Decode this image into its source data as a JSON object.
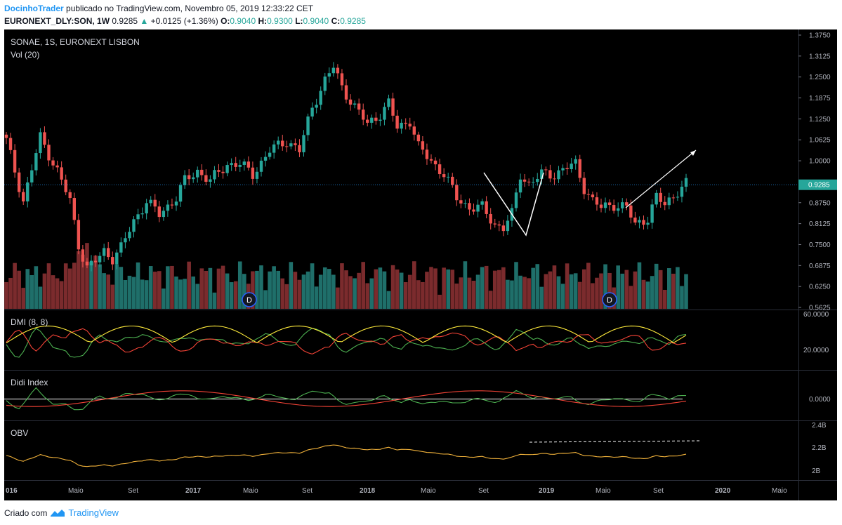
{
  "header": {
    "author": "DocinhoTrader",
    "published": "publicado no TradingView.com, Novembro 05, 2019 12:33:22 CET",
    "symbol": "EURONEXT_DLY:SON, 1W",
    "price": "0.9285",
    "change_arrow": "▲",
    "change": "+0.0125 (+1.36%)",
    "o_label": "O:",
    "o": "0.9040",
    "h_label": "H:",
    "h": "0.9300",
    "l_label": "L:",
    "l": "0.9040",
    "c_label": "C:",
    "c": "0.9285"
  },
  "footer": {
    "created": "Criado com",
    "brand": "TradingView"
  },
  "colors": {
    "background": "#000000",
    "up": "#26a69a",
    "down": "#ef5350",
    "vol_up": "#1f6f6a",
    "vol_down": "#7b2b2d",
    "plus_di": "#4caf50",
    "minus_di": "#f44336",
    "adx": "#ffeb3b",
    "didi_short": "#4caf50",
    "didi_long": "#f44336",
    "obv": "#f0b13a",
    "price_line": "#2196f3"
  },
  "chart_data": {
    "type": "candlestick",
    "pane_labels": {
      "main_title": "SONAE, 1S, EURONEXT LISBON",
      "volume": "Vol (20)",
      "dmi": "DMI (8, 8)",
      "didi": "Didi Index",
      "obv": "OBV"
    },
    "price_axis_ticks": [
      "1.3750",
      "1.3125",
      "1.2500",
      "1.1875",
      "1.1250",
      "1.0625",
      "1.0000",
      "0.8750",
      "0.8125",
      "0.7500",
      "0.6875",
      "0.6250",
      "0.5625"
    ],
    "last_price_label": "0.9285",
    "dmi_axis_ticks": [
      "60.0000",
      "20.0000"
    ],
    "didi_axis_ticks": [
      "0.0000"
    ],
    "obv_axis_ticks": [
      "2.4B",
      "2.2B",
      "2B"
    ],
    "time_axis": [
      "016",
      "Maio",
      "Set",
      "2017",
      "Maio",
      "Set",
      "2018",
      "Maio",
      "Set",
      "2019",
      "Maio",
      "Set",
      "2020",
      "Maio"
    ],
    "dividend_markers": [
      "D",
      "D"
    ],
    "price_anchors": [
      [
        0,
        1.06
      ],
      [
        4,
        0.88
      ],
      [
        8,
        1.07
      ],
      [
        12,
        0.97
      ],
      [
        15,
        0.88
      ],
      [
        17,
        0.75
      ],
      [
        19,
        0.68
      ],
      [
        21,
        0.7
      ],
      [
        23,
        0.73
      ],
      [
        25,
        0.71
      ],
      [
        27,
        0.74
      ],
      [
        30,
        0.82
      ],
      [
        33,
        0.88
      ],
      [
        36,
        0.84
      ],
      [
        40,
        0.89
      ],
      [
        42,
        0.94
      ],
      [
        45,
        0.97
      ],
      [
        48,
        0.94
      ],
      [
        52,
        0.99
      ],
      [
        55,
        0.99
      ],
      [
        58,
        0.96
      ],
      [
        62,
        1.03
      ],
      [
        66,
        1.06
      ],
      [
        69,
        1.03
      ],
      [
        72,
        1.16
      ],
      [
        75,
        1.24
      ],
      [
        77,
        1.28
      ],
      [
        79,
        1.22
      ],
      [
        82,
        1.16
      ],
      [
        85,
        1.11
      ],
      [
        88,
        1.14
      ],
      [
        90,
        1.17
      ],
      [
        92,
        1.1
      ],
      [
        95,
        1.12
      ],
      [
        97,
        1.04
      ],
      [
        100,
        1.0
      ],
      [
        103,
        0.96
      ],
      [
        106,
        0.89
      ],
      [
        109,
        0.86
      ],
      [
        112,
        0.86
      ],
      [
        115,
        0.81
      ],
      [
        117,
        0.8
      ],
      [
        119,
        0.84
      ],
      [
        121,
        0.96
      ],
      [
        123,
        0.93
      ],
      [
        126,
        0.96
      ],
      [
        129,
        0.96
      ],
      [
        132,
        0.98
      ],
      [
        134,
        0.99
      ],
      [
        136,
        0.92
      ],
      [
        138,
        0.88
      ],
      [
        140,
        0.86
      ],
      [
        143,
        0.87
      ],
      [
        146,
        0.86
      ],
      [
        148,
        0.81
      ],
      [
        151,
        0.83
      ],
      [
        153,
        0.89
      ],
      [
        155,
        0.87
      ],
      [
        158,
        0.91
      ],
      [
        160,
        0.93
      ]
    ],
    "price_ylim": [
      0.5625,
      1.375
    ],
    "weeks_shown": 161
  }
}
